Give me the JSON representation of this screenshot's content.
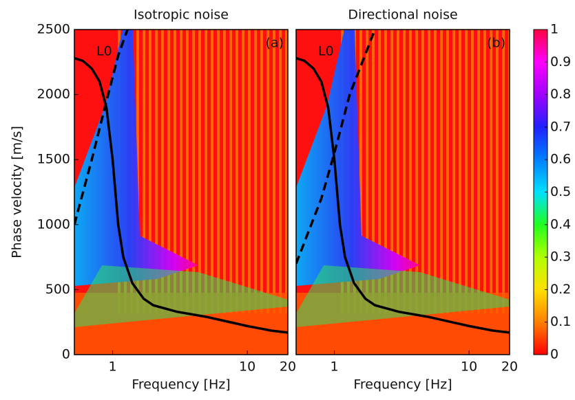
{
  "chart_data": [
    {
      "type": "line",
      "title": "Isotropic noise",
      "xlabel": "Frequency [Hz]",
      "ylabel": "Phase velocity [m/s]",
      "annotations": [
        "(a)",
        "L0"
      ],
      "xlog": true,
      "xlim": [
        0.52,
        20
      ],
      "ylim": [
        0,
        2500
      ],
      "xticks": [
        1,
        10,
        20
      ],
      "yticks": [
        0,
        500,
        1000,
        1500,
        2000,
        2500
      ],
      "series": [
        {
          "color": "#000000",
          "dash": false,
          "x": [
            0.52,
            0.6,
            0.7,
            0.8,
            0.9,
            1.0,
            1.1,
            1.2,
            1.4,
            1.7,
            2,
            3,
            5,
            10,
            15,
            20
          ],
          "values": [
            2280,
            2260,
            2200,
            2100,
            1900,
            1500,
            1000,
            750,
            550,
            430,
            380,
            330,
            290,
            220,
            185,
            170
          ]
        },
        {
          "color": "#000000",
          "dash": true,
          "x": [
            0.52,
            0.7,
            0.9,
            1.1,
            1.29
          ],
          "values": [
            1000,
            1500,
            1950,
            2300,
            2500
          ]
        }
      ]
    },
    {
      "type": "line",
      "title": "Directional noise",
      "xlabel": "Frequency [Hz]",
      "annotations": [
        "(b)",
        "L0"
      ],
      "xlog": true,
      "xlim": [
        0.52,
        20
      ],
      "ylim": [
        0,
        2500
      ],
      "xticks": [
        1,
        10,
        20
      ],
      "series": [
        {
          "color": "#000000",
          "dash": false,
          "x": [
            0.52,
            0.6,
            0.7,
            0.8,
            0.9,
            1.0,
            1.1,
            1.2,
            1.4,
            1.7,
            2,
            3,
            5,
            10,
            15,
            20
          ],
          "values": [
            2280,
            2260,
            2200,
            2100,
            1900,
            1500,
            1000,
            750,
            550,
            430,
            380,
            330,
            290,
            220,
            185,
            170
          ]
        },
        {
          "color": "#000000",
          "dash": true,
          "x": [
            0.52,
            0.8,
            1.0,
            1.3,
            2.0
          ],
          "values": [
            700,
            1200,
            1550,
            2000,
            2500
          ]
        }
      ]
    },
    {
      "type": "colorbar",
      "lim": [
        0,
        1
      ],
      "ticks": [
        0,
        0.1,
        0.2,
        0.3,
        0.4,
        0.5,
        0.6,
        0.7,
        0.8,
        0.9,
        1
      ],
      "colors": [
        "#ff0000",
        "#ff8000",
        "#ffe000",
        "#b0ff00",
        "#20ff20",
        "#00e0ff",
        "#0080ff",
        "#2020ff",
        "#a000ff",
        "#ff00ff",
        "#ff0040"
      ]
    }
  ]
}
